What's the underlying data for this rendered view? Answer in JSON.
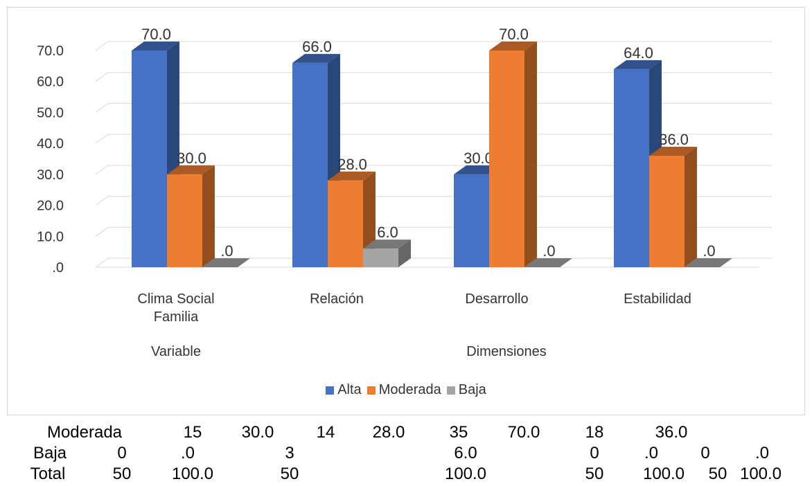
{
  "chart_data": {
    "type": "bar",
    "categories": [
      "Clima Social\nFamilia",
      "Relación",
      "Desarrollo",
      "Estabilidad"
    ],
    "groups": [
      {
        "label": "Variable",
        "categories": [
          0
        ]
      },
      {
        "label": "Dimensiones",
        "categories": [
          1,
          2,
          3
        ]
      }
    ],
    "series": [
      {
        "name": "Alta",
        "values": [
          70.0,
          66.0,
          30.0,
          64.0
        ],
        "labels": [
          "70.0",
          "66.0",
          "30.0",
          "64.0"
        ],
        "color": "#4472C4"
      },
      {
        "name": "Moderada",
        "values": [
          30.0,
          28.0,
          70.0,
          36.0
        ],
        "labels": [
          "30.0",
          "28.0",
          "70.0",
          "36.0"
        ],
        "color": "#ED7D31"
      },
      {
        "name": "Baja",
        "values": [
          0,
          6.0,
          0,
          0
        ],
        "labels": [
          ".0",
          "6.0",
          ".0",
          ".0"
        ],
        "color": "#A5A5A5"
      }
    ],
    "ylim": [
      0,
      70
    ],
    "yticks": [
      ".0",
      "10.0",
      "20.0",
      "30.0",
      "40.0",
      "50.0",
      "60.0",
      "70.0"
    ],
    "grid": true,
    "legend_position": "bottom",
    "style": "3d-column"
  },
  "table": {
    "rows": [
      {
        "label": "Moderada",
        "cells": [
          "15",
          "30.0",
          "14",
          "28.0",
          "35",
          "70.0",
          "18",
          "36.0"
        ]
      },
      {
        "label": "Baja",
        "cells": [
          "0",
          ".0",
          "3",
          "6.0",
          "0",
          ".0",
          "0",
          ".0"
        ]
      },
      {
        "label": "Total",
        "cells": [
          "50",
          "100.0",
          "50",
          "100.0",
          "50",
          "100.0",
          "50",
          "100.0"
        ]
      }
    ]
  }
}
